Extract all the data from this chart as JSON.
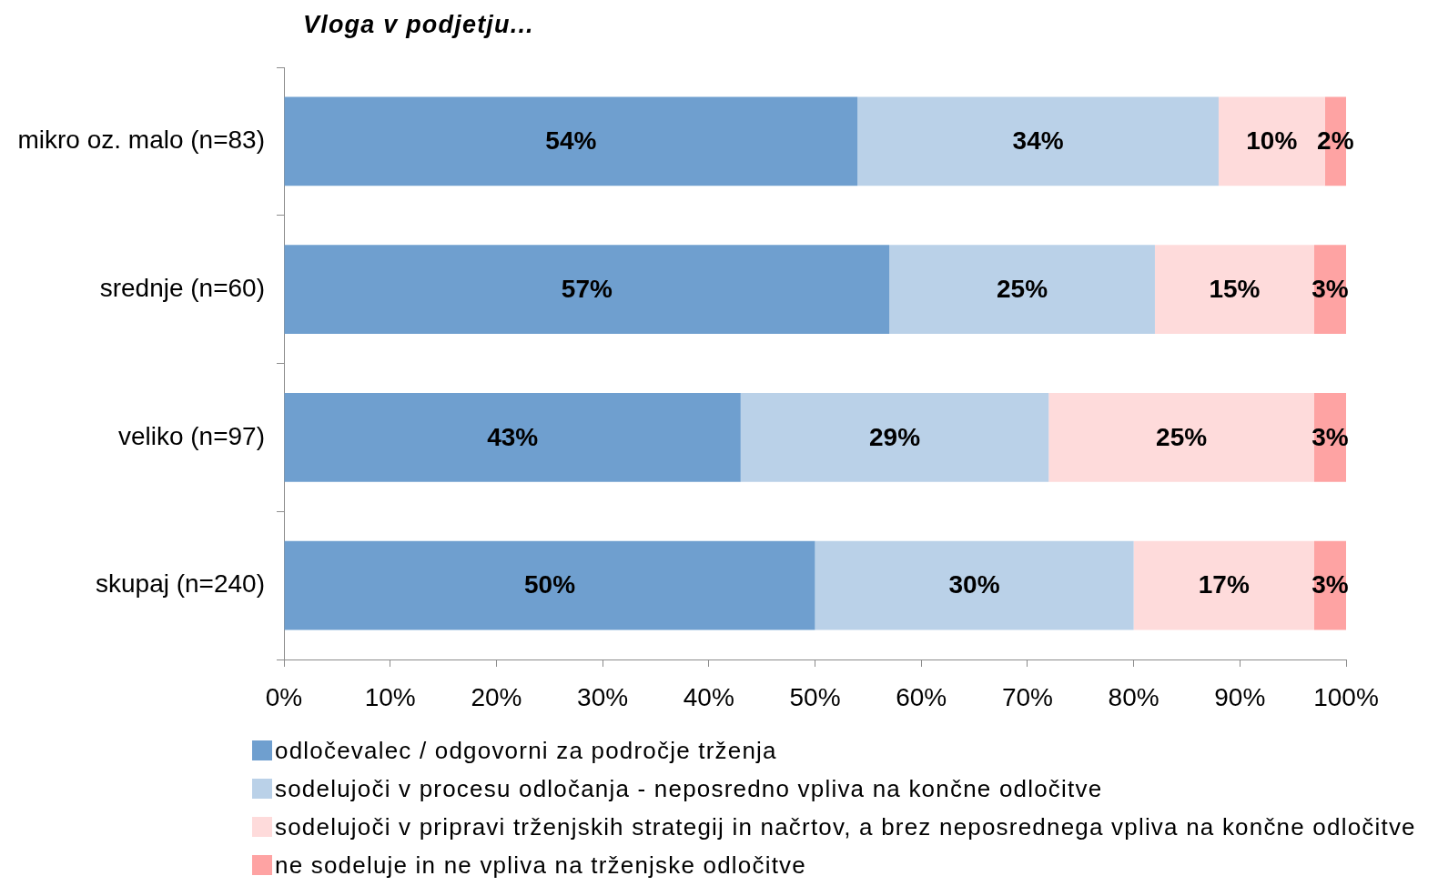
{
  "chart_data": {
    "type": "bar",
    "orientation": "horizontal",
    "stacked": true,
    "title": "Vloga v podjetju...",
    "categories": [
      "mikro oz. malo (n=83)",
      "srednje (n=60)",
      "veliko (n=97)",
      "skupaj (n=240)"
    ],
    "series": [
      {
        "name": "odločevalec / odgovorni za področje trženja",
        "color": "#6f9fcf",
        "values": [
          54,
          57,
          43,
          50
        ],
        "value_labels": [
          "54%",
          "57%",
          "43%",
          "50%"
        ]
      },
      {
        "name": "sodelujoči v procesu odločanja - neposredno vpliva na končne odločitve",
        "color": "#bad1e8",
        "values": [
          34,
          25,
          29,
          30
        ],
        "value_labels": [
          "34%",
          "25%",
          "29%",
          "30%"
        ]
      },
      {
        "name": "sodelujoči v pripravi trženjskih strategij in načrtov, a brez neposrednega vpliva na končne odločitve",
        "color": "#fedbdb",
        "values": [
          10,
          15,
          25,
          17
        ],
        "value_labels": [
          "10%",
          "15%",
          "25%",
          "17%"
        ]
      },
      {
        "name": "ne sodeluje in ne vpliva na trženjske odločitve",
        "color": "#fea3a3",
        "values": [
          2,
          3,
          3,
          3
        ],
        "value_labels": [
          "2%",
          "3%",
          "3%",
          "3%"
        ]
      }
    ],
    "xlim": [
      0,
      100
    ],
    "xticks": [
      {
        "value": 0,
        "label": "0%"
      },
      {
        "value": 10,
        "label": "10%"
      },
      {
        "value": 20,
        "label": "20%"
      },
      {
        "value": 30,
        "label": "30%"
      },
      {
        "value": 40,
        "label": "40%"
      },
      {
        "value": 50,
        "label": "50%"
      },
      {
        "value": 60,
        "label": "60%"
      },
      {
        "value": 70,
        "label": "70%"
      },
      {
        "value": 80,
        "label": "80%"
      },
      {
        "value": 90,
        "label": "90%"
      },
      {
        "value": 100,
        "label": "100%"
      }
    ],
    "legend": "bottom"
  }
}
